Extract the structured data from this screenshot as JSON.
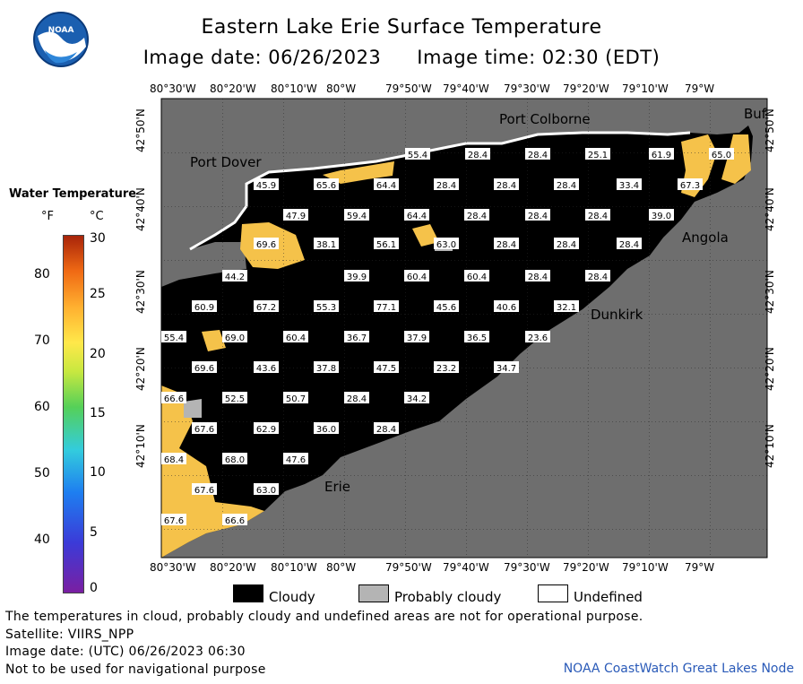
{
  "header": {
    "title": "Eastern Lake Erie Surface Temperature",
    "image_date": "Image date: 06/26/2023",
    "image_time": "Image time: 02:30 (EDT)",
    "logo_text": "NOAA"
  },
  "legend": {
    "title": "Water Temperature",
    "unit_f": "°F",
    "unit_c": "°C",
    "f_ticks": [
      "80",
      "70",
      "60",
      "50",
      "40"
    ],
    "c_ticks": [
      "30",
      "25",
      "20",
      "15",
      "10",
      "5",
      "0"
    ]
  },
  "axes": {
    "lon_labels": [
      "80°30'W",
      "80°20'W",
      "80°10'W",
      "80°W",
      "79°50'W",
      "79°40'W",
      "79°30'W",
      "79°20'W",
      "79°10'W",
      "79°W"
    ],
    "lat_labels": [
      "42°50'N",
      "42°40'N",
      "42°30'N",
      "42°20'N",
      "42°10'N"
    ]
  },
  "places": [
    "Port Colborne",
    "Port Dover",
    "Angola",
    "Dunkirk",
    "Erie",
    "Buf"
  ],
  "temperatures": [
    "55.4",
    "28.4",
    "28.4",
    "25.1",
    "61.9",
    "65.0",
    "45.9",
    "65.6",
    "64.4",
    "28.4",
    "28.4",
    "28.4",
    "33.4",
    "67.3",
    "47.9",
    "59.4",
    "64.4",
    "28.4",
    "28.4",
    "28.4",
    "39.0",
    "69.6",
    "38.1",
    "56.1",
    "63.0",
    "28.4",
    "28.4",
    "28.4",
    "44.2",
    "39.9",
    "60.4",
    "60.4",
    "28.4",
    "28.4",
    "60.9",
    "67.2",
    "55.3",
    "77.1",
    "45.6",
    "40.6",
    "32.1",
    "55.4",
    "69.0",
    "60.4",
    "36.7",
    "37.9",
    "36.5",
    "23.6",
    "69.6",
    "43.6",
    "37.8",
    "47.5",
    "23.2",
    "34.7",
    "66.6",
    "52.5",
    "50.7",
    "28.4",
    "34.2",
    "67.6",
    "62.9",
    "36.0",
    "28.4",
    "68.4",
    "68.0",
    "47.6",
    "67.6",
    "63.0",
    "67.6",
    "66.6"
  ],
  "key": {
    "cloudy": "Cloudy",
    "probably_cloudy": "Probably cloudy",
    "undefined": "Undefined"
  },
  "footer": {
    "note": "The temperatures in cloud, probably cloudy and undefined areas are not for operational purpose.",
    "satellite": "Satellite: VIIRS_NPP",
    "utc_date": "Image date: (UTC) 06/26/2023  06:30",
    "nav": "Not to be used for navigational purpose",
    "credit": "NOAA CoastWatch Great Lakes Node"
  },
  "colors": {
    "land": "#6e6e6e",
    "cloud": "#000000",
    "warm_water": "#f5c24a",
    "probably_cloudy": "#b4b4b4"
  }
}
